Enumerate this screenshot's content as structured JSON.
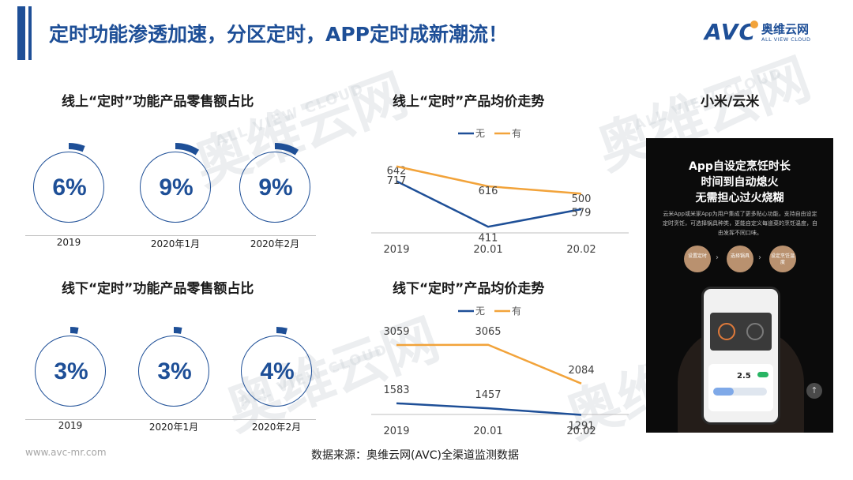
{
  "page": {
    "title": "定时功能渗透加速，分区定时，APP定时成新潮流！",
    "logo": {
      "mark": "AVC",
      "name_cn": "奥维云网",
      "name_en": "ALL VIEW CLOUD"
    },
    "watermark_cn": "奥维云网",
    "watermark_en": "ALL VIEW CLOUD",
    "footer_url": "www.avc-mr.com",
    "footer_source": "数据来源：奥维云网(AVC)全渠道监测数据",
    "accent_color": "#1e4f97",
    "secondary_color": "#f2a33a"
  },
  "product": {
    "title": "小米/云米",
    "image_headline": [
      "App自设定烹饪时长",
      "时间到自动熄火",
      "无需担心过火烧糊"
    ],
    "image_desc": "云米App或米家App为用户集成了更多贴心功能，支持自由设定定时烹饪，可选择锅具种类，更能自定义每道菜的烹饪温度，自由发挥不同口味。",
    "steps": [
      "设置定时",
      "选择锅具",
      "设定烹饪温度"
    ],
    "phone_value": "2.5"
  },
  "chart_data": [
    {
      "type": "pie",
      "title": "线上“定时”功能产品零售额占比",
      "categories": [
        "2019",
        "2020年1月",
        "2020年2月"
      ],
      "values": [
        6,
        9,
        9
      ],
      "labels": [
        "6%",
        "9%",
        "9%"
      ],
      "unit": "%"
    },
    {
      "type": "pie",
      "title": "线下“定时”功能产品零售额占比",
      "categories": [
        "2019",
        "2020年1月",
        "2020年2月"
      ],
      "values": [
        3,
        3,
        4
      ],
      "labels": [
        "3%",
        "3%",
        "4%"
      ],
      "unit": "%"
    },
    {
      "type": "line",
      "title": "线上“定时”产品均价走势",
      "categories": [
        "2019",
        "20.01",
        "20.02"
      ],
      "series": [
        {
          "name": "无",
          "values": [
            642,
            411,
            500
          ],
          "color": "#1e4f97"
        },
        {
          "name": "有",
          "values": [
            717,
            616,
            579
          ],
          "color": "#f2a33a"
        }
      ],
      "legend_position": "top-center",
      "grid": false
    },
    {
      "type": "line",
      "title": "线下“定时”产品均价走势",
      "categories": [
        "2019",
        "20.01",
        "20.02"
      ],
      "series": [
        {
          "name": "无",
          "values": [
            1583,
            1457,
            1291
          ],
          "color": "#1e4f97"
        },
        {
          "name": "有",
          "values": [
            3059,
            3065,
            2084
          ],
          "color": "#f2a33a"
        }
      ],
      "legend_position": "top-center",
      "grid": false
    }
  ]
}
